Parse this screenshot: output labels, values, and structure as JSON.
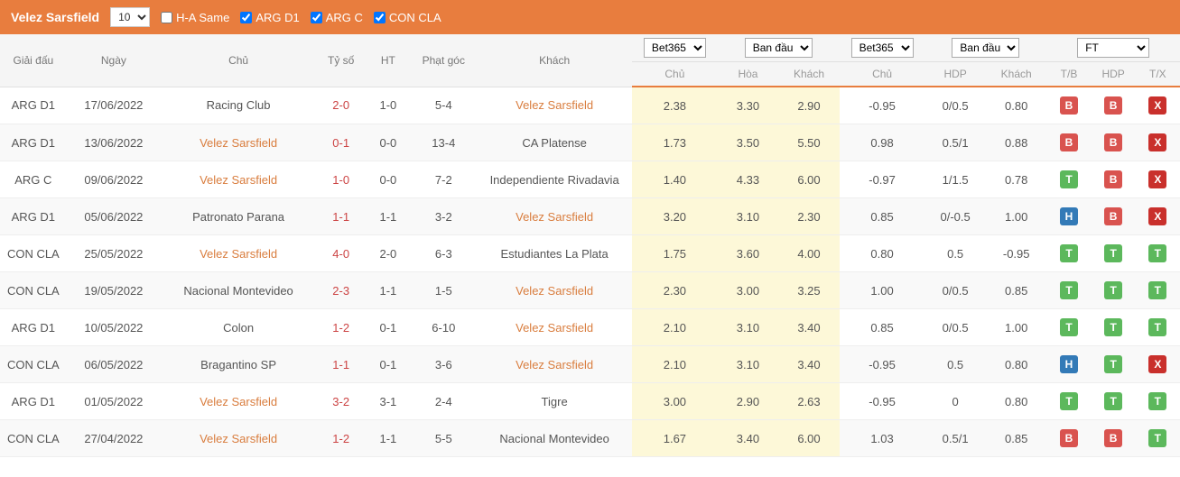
{
  "header": {
    "title": "Velez Sarsfield",
    "count_select": "10",
    "filters": [
      {
        "label": "H-A Same",
        "checked": false
      },
      {
        "label": "ARG D1",
        "checked": true
      },
      {
        "label": "ARG C",
        "checked": true
      },
      {
        "label": "CON CLA",
        "checked": true
      }
    ]
  },
  "columns": {
    "league": "Giải đấu",
    "date": "Ngày",
    "home": "Chủ",
    "score": "Tỷ số",
    "ht": "HT",
    "corner": "Phạt góc",
    "away": "Khách",
    "bookmaker1": "Bet365",
    "initial1": "Ban đầu",
    "bookmaker2": "Bet365",
    "initial2": "Ban đầu",
    "ft": "FT",
    "odds_home": "Chủ",
    "odds_draw": "Hòa",
    "odds_away": "Khách",
    "hdp_home": "Chủ",
    "hdp": "HDP",
    "hdp_away": "Khách",
    "tb": "T/B",
    "hdp2": "HDP",
    "tx": "T/X"
  },
  "rows": [
    {
      "league": "ARG D1",
      "date": "17/06/2022",
      "home": "Racing Club",
      "home_hl": false,
      "score": "2-0",
      "ht": "1-0",
      "corner": "5-4",
      "away": "Velez Sarsfield",
      "away_hl": true,
      "o1": "2.38",
      "o2": "3.30",
      "o3": "2.90",
      "h1": "-0.95",
      "h2": "0/0.5",
      "h3": "0.80",
      "b1": "B",
      "b2": "B",
      "b3": "X"
    },
    {
      "league": "ARG D1",
      "date": "13/06/2022",
      "home": "Velez Sarsfield",
      "home_hl": true,
      "score": "0-1",
      "ht": "0-0",
      "corner": "13-4",
      "away": "CA Platense",
      "away_hl": false,
      "o1": "1.73",
      "o2": "3.50",
      "o3": "5.50",
      "h1": "0.98",
      "h2": "0.5/1",
      "h3": "0.88",
      "b1": "B",
      "b2": "B",
      "b3": "X"
    },
    {
      "league": "ARG C",
      "date": "09/06/2022",
      "home": "Velez Sarsfield",
      "home_hl": true,
      "score": "1-0",
      "ht": "0-0",
      "corner": "7-2",
      "away": "Independiente Rivadavia",
      "away_hl": false,
      "o1": "1.40",
      "o2": "4.33",
      "o3": "6.00",
      "h1": "-0.97",
      "h2": "1/1.5",
      "h3": "0.78",
      "b1": "T",
      "b2": "B",
      "b3": "X"
    },
    {
      "league": "ARG D1",
      "date": "05/06/2022",
      "home": "Patronato Parana",
      "home_hl": false,
      "score": "1-1",
      "ht": "1-1",
      "corner": "3-2",
      "away": "Velez Sarsfield",
      "away_hl": true,
      "o1": "3.20",
      "o2": "3.10",
      "o3": "2.30",
      "h1": "0.85",
      "h2": "0/-0.5",
      "h3": "1.00",
      "b1": "H",
      "b2": "B",
      "b3": "X"
    },
    {
      "league": "CON CLA",
      "date": "25/05/2022",
      "home": "Velez Sarsfield",
      "home_hl": true,
      "score": "4-0",
      "ht": "2-0",
      "corner": "6-3",
      "away": "Estudiantes La Plata",
      "away_hl": false,
      "o1": "1.75",
      "o2": "3.60",
      "o3": "4.00",
      "h1": "0.80",
      "h2": "0.5",
      "h3": "-0.95",
      "b1": "T",
      "b2": "T",
      "b3": "T"
    },
    {
      "league": "CON CLA",
      "date": "19/05/2022",
      "home": "Nacional Montevideo",
      "home_hl": false,
      "score": "2-3",
      "ht": "1-1",
      "corner": "1-5",
      "away": "Velez Sarsfield",
      "away_hl": true,
      "o1": "2.30",
      "o2": "3.00",
      "o3": "3.25",
      "h1": "1.00",
      "h2": "0/0.5",
      "h3": "0.85",
      "b1": "T",
      "b2": "T",
      "b3": "T"
    },
    {
      "league": "ARG D1",
      "date": "10/05/2022",
      "home": "Colon",
      "home_hl": false,
      "score": "1-2",
      "ht": "0-1",
      "corner": "6-10",
      "away": "Velez Sarsfield",
      "away_hl": true,
      "o1": "2.10",
      "o2": "3.10",
      "o3": "3.40",
      "h1": "0.85",
      "h2": "0/0.5",
      "h3": "1.00",
      "b1": "T",
      "b2": "T",
      "b3": "T"
    },
    {
      "league": "CON CLA",
      "date": "06/05/2022",
      "home": "Bragantino SP",
      "home_hl": false,
      "score": "1-1",
      "ht": "0-1",
      "corner": "3-6",
      "away": "Velez Sarsfield",
      "away_hl": true,
      "o1": "2.10",
      "o2": "3.10",
      "o3": "3.40",
      "h1": "-0.95",
      "h2": "0.5",
      "h3": "0.80",
      "b1": "H",
      "b2": "T",
      "b3": "X"
    },
    {
      "league": "ARG D1",
      "date": "01/05/2022",
      "home": "Velez Sarsfield",
      "home_hl": true,
      "score": "3-2",
      "ht": "3-1",
      "corner": "2-4",
      "away": "Tigre",
      "away_hl": false,
      "o1": "3.00",
      "o2": "2.90",
      "o3": "2.63",
      "h1": "-0.95",
      "h2": "0",
      "h3": "0.80",
      "b1": "T",
      "b2": "T",
      "b3": "T"
    },
    {
      "league": "CON CLA",
      "date": "27/04/2022",
      "home": "Velez Sarsfield",
      "home_hl": true,
      "score": "1-2",
      "ht": "1-1",
      "corner": "5-5",
      "away": "Nacional Montevideo",
      "away_hl": false,
      "o1": "1.67",
      "o2": "3.40",
      "o3": "6.00",
      "h1": "1.03",
      "h2": "0.5/1",
      "h3": "0.85",
      "b1": "B",
      "b2": "B",
      "b3": "T"
    }
  ]
}
